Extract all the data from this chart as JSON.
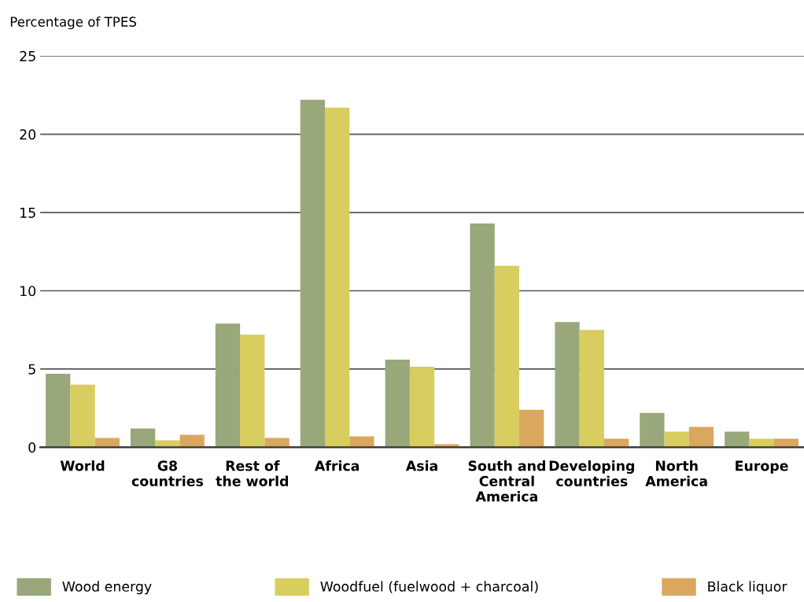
{
  "chart_data": {
    "type": "bar",
    "ylabel": "Percentage of TPES",
    "categories": [
      "World",
      "G8\ncountries",
      "Rest of\nthe world",
      "Africa",
      "Asia",
      "South and\nCentral\nAmerica",
      "Developing\ncountries",
      "North\nAmerica",
      "Europe"
    ],
    "series": [
      {
        "name": "Wood energy",
        "color": "#98a87a",
        "values": [
          4.7,
          1.2,
          7.9,
          22.2,
          5.6,
          14.3,
          8.0,
          2.2,
          1.0
        ]
      },
      {
        "name": "Woodfuel (fuelwood + charcoal)",
        "color": "#d8cd5f",
        "values": [
          4.0,
          0.45,
          7.2,
          21.7,
          5.15,
          11.6,
          7.5,
          1.0,
          0.55
        ]
      },
      {
        "name": "Black liquor",
        "color": "#d9a75e",
        "values": [
          0.6,
          0.8,
          0.6,
          0.7,
          0.2,
          2.4,
          0.55,
          1.3,
          0.55
        ]
      }
    ],
    "ylim": [
      0,
      25
    ],
    "yticks": [
      0,
      5,
      10,
      15,
      20,
      25
    ],
    "grid": "y",
    "legend": "bottom"
  }
}
